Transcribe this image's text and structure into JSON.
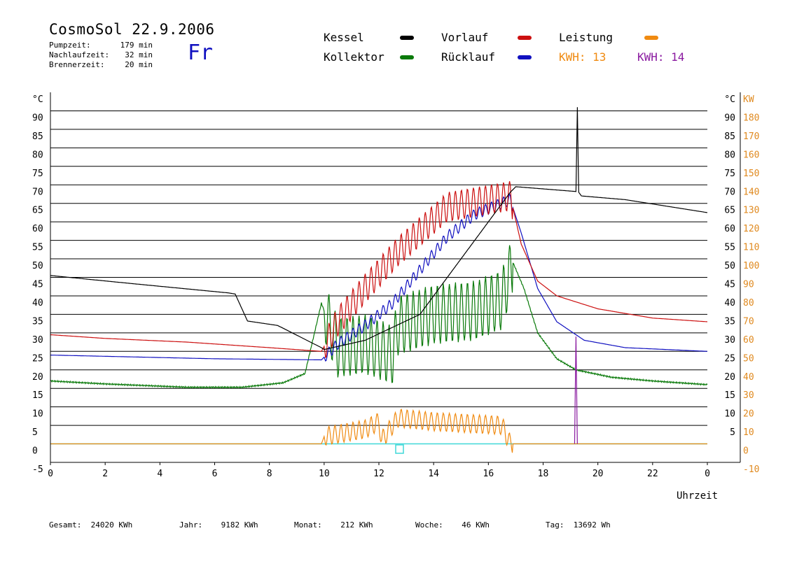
{
  "header": {
    "title": "CosmoSol 22.9.2006",
    "weekday": "Fr",
    "stats": [
      {
        "label": "Pumpzeit:",
        "value": "179 min"
      },
      {
        "label": "Nachlaufzeit:",
        "value": "32 min"
      },
      {
        "label": "Brennerzeit:",
        "value": "20 min"
      }
    ]
  },
  "legend": {
    "kessel": "Kessel",
    "kollektor": "Kollektor",
    "vorlauf": "Vorlauf",
    "ruecklauf": "Rücklauf",
    "leistung": "Leistung",
    "kwh1": "KWH: 13",
    "kwh2": "KWH: 14"
  },
  "colors": {
    "kessel": "#000000",
    "kollektor": "#0a7a0a",
    "vorlauf": "#cc1010",
    "ruecklauf": "#1010c0",
    "leistung": "#f08a10",
    "purple": "#8a1aa0",
    "cyan": "#40d8d8",
    "kw_axis": "#e08a20"
  },
  "chart_data": {
    "type": "line",
    "xlabel": "Uhrzeit",
    "ylabel_left": "°C",
    "ylabel_right": "KW",
    "x_ticks": [
      "0",
      "2",
      "4",
      "6",
      "8",
      "10",
      "12",
      "14",
      "16",
      "18",
      "20",
      "22",
      "0"
    ],
    "y_left_ticks": [
      "90",
      "85",
      "80",
      "75",
      "70",
      "65",
      "60",
      "55",
      "50",
      "45",
      "40",
      "35",
      "30",
      "25",
      "20",
      "15",
      "10",
      "5",
      "0",
      "-5"
    ],
    "y_right_ticks": [
      "180",
      "170",
      "160",
      "150",
      "140",
      "130",
      "120",
      "110",
      "100",
      "90",
      "80",
      "70",
      "60",
      "50",
      "40",
      "30",
      "20",
      "10",
      "0",
      "-10"
    ],
    "xlim": [
      0,
      24
    ],
    "ylim_left": [
      -5,
      95
    ],
    "ylim_right": [
      -10,
      190
    ],
    "grid": true,
    "series": [
      {
        "name": "Kessel",
        "key": "kessel",
        "x": [
          0,
          3,
          6.5,
          6.75,
          7.2,
          8.3,
          9.9,
          10.0,
          11.5,
          13.5,
          16.8,
          17.0,
          19.2,
          19.25,
          19.3,
          19.4,
          21,
          24
        ],
        "y": [
          45.5,
          43.3,
          40.8,
          40.5,
          33.2,
          32,
          26,
          25.5,
          28,
          35,
          68,
          69.5,
          68.2,
          91,
          68,
          67,
          66,
          62.5
        ]
      },
      {
        "name": "Vorlauf",
        "key": "vorlauf",
        "x": [
          0,
          2,
          5,
          8,
          9.9,
          10.5,
          11.5,
          12.7,
          14.5,
          16.8,
          17.2,
          17.8,
          18.5,
          20,
          22,
          24
        ],
        "y": [
          29.5,
          28.5,
          27.5,
          26,
          25,
          33,
          42,
          52,
          64,
          67,
          54,
          44,
          40,
          36.5,
          34,
          33
        ]
      },
      {
        "name": "Rücklauf",
        "key": "ruecklauf",
        "x": [
          0,
          3,
          6,
          9.9,
          10.5,
          11.5,
          12.5,
          13.5,
          14.5,
          15.5,
          16.8,
          17.2,
          17.8,
          18.5,
          19.5,
          21,
          24
        ],
        "y": [
          24,
          23.5,
          23,
          22.7,
          27,
          32,
          38,
          47,
          56,
          62,
          66,
          57,
          42,
          33,
          28,
          26,
          25
        ]
      },
      {
        "name": "Kollektor",
        "key": "kollektor",
        "x": [
          0,
          2,
          5,
          7,
          8.5,
          9.3,
          9.9,
          10.5,
          11.5,
          12.5,
          12.7,
          14,
          15.5,
          16.5,
          16.9,
          17.3,
          17.8,
          18.5,
          19.2,
          20.5,
          22,
          24
        ],
        "y": [
          17,
          16.2,
          15.3,
          15.3,
          16.5,
          19,
          38,
          26,
          27,
          24,
          32,
          35,
          36,
          39,
          49,
          42,
          30,
          23,
          20,
          18,
          17,
          16
        ]
      },
      {
        "name": "Leistung",
        "key": "leistung",
        "x": [
          0,
          9.9,
          10.0,
          11.5,
          12.0,
          12.1,
          12.7,
          14,
          16.5,
          16.8,
          24
        ],
        "y": [
          0,
          0,
          2,
          4,
          6,
          1,
          7,
          6,
          5,
          0,
          0
        ]
      }
    ]
  },
  "footer": [
    {
      "label": "Gesamt:",
      "value": "24020 KWh"
    },
    {
      "label": "Jahr:",
      "value": "9182 KWh"
    },
    {
      "label": "Monat:",
      "value": "212 KWh"
    },
    {
      "label": "Woche:",
      "value": "46 KWh"
    },
    {
      "label": "Tag:",
      "value": "13692 Wh"
    }
  ]
}
